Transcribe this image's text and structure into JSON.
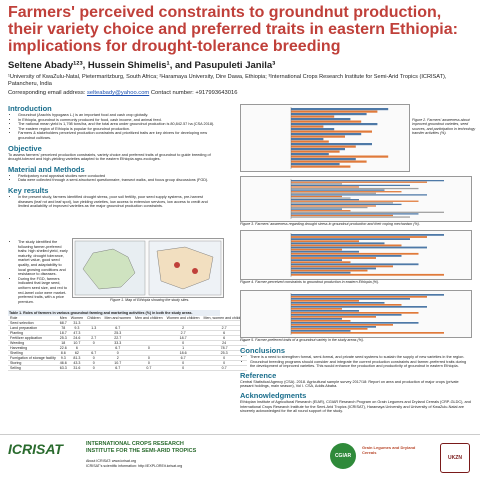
{
  "title": "Farmers' perceived constraints to groundnut production, their variety choice and preferred traits in eastern Ethiopia: implications for drought-tolerance breeding",
  "authors": "Seltene Abady¹²³, Hussein Shimelis¹, and Pasupuleti Janila³",
  "affiliations": "¹University of KwaZulu-Natal, Pietermaritzburg, South Africa; ²Haramaya University, Dire Dawa, Ethiopia; ³International Crops Research Institute for Semi-Arid Tropics (ICRISAT), Patancheru, India",
  "contact": {
    "label": "Corresponding email address:",
    "email": "selteabady@yahoo.com",
    "phone": "Contact number: +917993643016"
  },
  "intro": {
    "heading": "Introduction",
    "bullets": [
      "Groundnut (Arachis hypogaea L.) is an important food and cash crop globally.",
      "In Ethiopia, groundnut is commonly produced for food, cash income, and animal feed.",
      "The national mean yield is 1,798 tons/ha, and the total area under groundnut production is 80,842.57 ha (CSA 2018).",
      "The eastern region of Ethiopia is popular for groundnut production.",
      "Farmers & stakeholders perceived production constraints and prioritized traits are key drivers for developing new groundnut cultivars."
    ]
  },
  "objective": {
    "heading": "Objective",
    "text": "To assess farmers' perceived production constraints, variety choice and preferred traits of groundnut to guide breeding of drought-tolerant and high-yielding varieties adapted to the eastern Ethiopia agro-ecologies."
  },
  "methods": {
    "heading": "Material and Methods",
    "bullets": [
      "Participatory rural appraisal studies were conducted",
      "Data were collected through a semi-structured questionnaire, transect walks, and focus group discussions (FGD)."
    ]
  },
  "results": {
    "heading": "Key results",
    "bullets": [
      "In the present study, farmers identified drought stress, poor soil fertility, poor seed supply systems, pre-harvest diseases (leaf rot and leaf spot), low yielding varieties, low access to extension services, low access to credit and limited availability of improved varieties as the major groundnut production constraints.",
      "The study identified the following farmer-preferred traits: high shelled yield, early maturity, drought tolerance, market value, good seed quality, and adaptability to local growing conditions and resistance to diseases.",
      "During the FGD, farmers indicated that large seed, uniform seed size, and red to red-lamel color were market-preferred traits, with a price premium."
    ],
    "map_caption": "Figure 1. Map of Ethiopia showing the study sites."
  },
  "table": {
    "caption": "Table 1. Roles of farmers in various groundnut farming and marketing activities (%) in both the study areas.",
    "columns": [
      "Role",
      "Men",
      "Women",
      "Children",
      "Men and women",
      "Men and children",
      "Women and children",
      "Men, women and children"
    ],
    "rows": [
      [
        "Seed selection",
        "68.7",
        "31.3",
        "",
        "",
        "",
        "",
        ""
      ],
      [
        "Land preparation",
        "78",
        "9.3",
        "1.3",
        "6.7",
        "",
        "2",
        "2.7"
      ],
      [
        "Planting",
        "18.7",
        "47.3",
        "",
        "25.3",
        "",
        "2.7",
        "6"
      ],
      [
        "Fertilizer application",
        "25.3",
        "24.6",
        "2.7",
        "22.7",
        "",
        "18.7",
        "6"
      ],
      [
        "Weeding",
        "18",
        "10.7",
        "0",
        "33.3",
        "",
        "0",
        "24"
      ],
      [
        "Harvesting",
        "22.6",
        "6",
        "",
        "6.7",
        "0",
        "1",
        "78.7"
      ],
      [
        "Shelling",
        "8.6",
        "62",
        "6.7",
        "0",
        "",
        "18.6",
        "25.3"
      ],
      [
        "Fumigation of storage facility",
        "9.3",
        "81.3",
        "0",
        "2",
        "0",
        "6.7",
        "0"
      ],
      [
        "Storing",
        "46.6",
        "43.3",
        "0",
        "10.7",
        "0",
        "0",
        "0"
      ],
      [
        "Selling",
        "63.3",
        "31.6",
        "0",
        "6.7",
        "0.7",
        "0",
        "0.7"
      ]
    ]
  },
  "figures": {
    "fig2": "Figure 2. Farmers' awareness about improved groundnut varieties, seed sources, and participation in technology transfer activities (%).",
    "fig3": "Figure 3. Farmers' awareness regarding drought stress in groundnut production and their coping mechanism (%).",
    "fig4": "Figure 4. Farmer-perceived constraints to groundnut production in eastern Ethiopia (%).",
    "fig5": "Figure 5. Farmer-preferred traits of a groundnut variety in the study areas (%)."
  },
  "conclusions": {
    "heading": "Conclusions",
    "bullets": [
      "There is a need to strengthen formal, semi-formal, and private seed systems to sustain the supply of new varieties in the region.",
      "Groundnut breeding programs should consider and integrate the current production constraints and farmer-preferred traits during the development of improved varieties. This would enhance the production and productivity of groundnut in eastern Ethiopia."
    ]
  },
  "reference": {
    "heading": "Reference",
    "text": "Central Statistical Agency (CSA). 2018. Agricultural sample survey 2017/18: Report on area and production of major crops (private peasant holdings, main season), Vol I. CSA, Addis Ababa."
  },
  "ack": {
    "heading": "Acknowledgments",
    "text": "Ethiopian Institute of Agricultural Research (EIAR), CGIAR Research Program on Grain Legumes and Dryland Cereals (CRP-GLDC), and International Crops Research Institute for the Semi-Arid Tropics (ICRISAT), Haramaya University and University of KwaZulu-Natal are sincerely acknowledged for the all round support of the study."
  },
  "footer": {
    "logo1": "ICRISAT",
    "inst": "INTERNATIONAL CROPS RESEARCH INSTITUTE FOR THE SEMI-ARID TROPICS",
    "about": "About ICRISAT: www.icrisat.org",
    "impact": "ICRISAT's scientific information: http://EXPLOREit.icrisat.org",
    "logo2": "CGIAR",
    "logo3": "Grain Legumes and Dryland Cereals",
    "logo4": "UKZN"
  },
  "colors": {
    "title": "#c0403a",
    "heading": "#1b6e8c",
    "bar_blue": "#4e79a7",
    "bar_orange": "#e07a3a",
    "bar_grey": "#a0a0a0"
  }
}
